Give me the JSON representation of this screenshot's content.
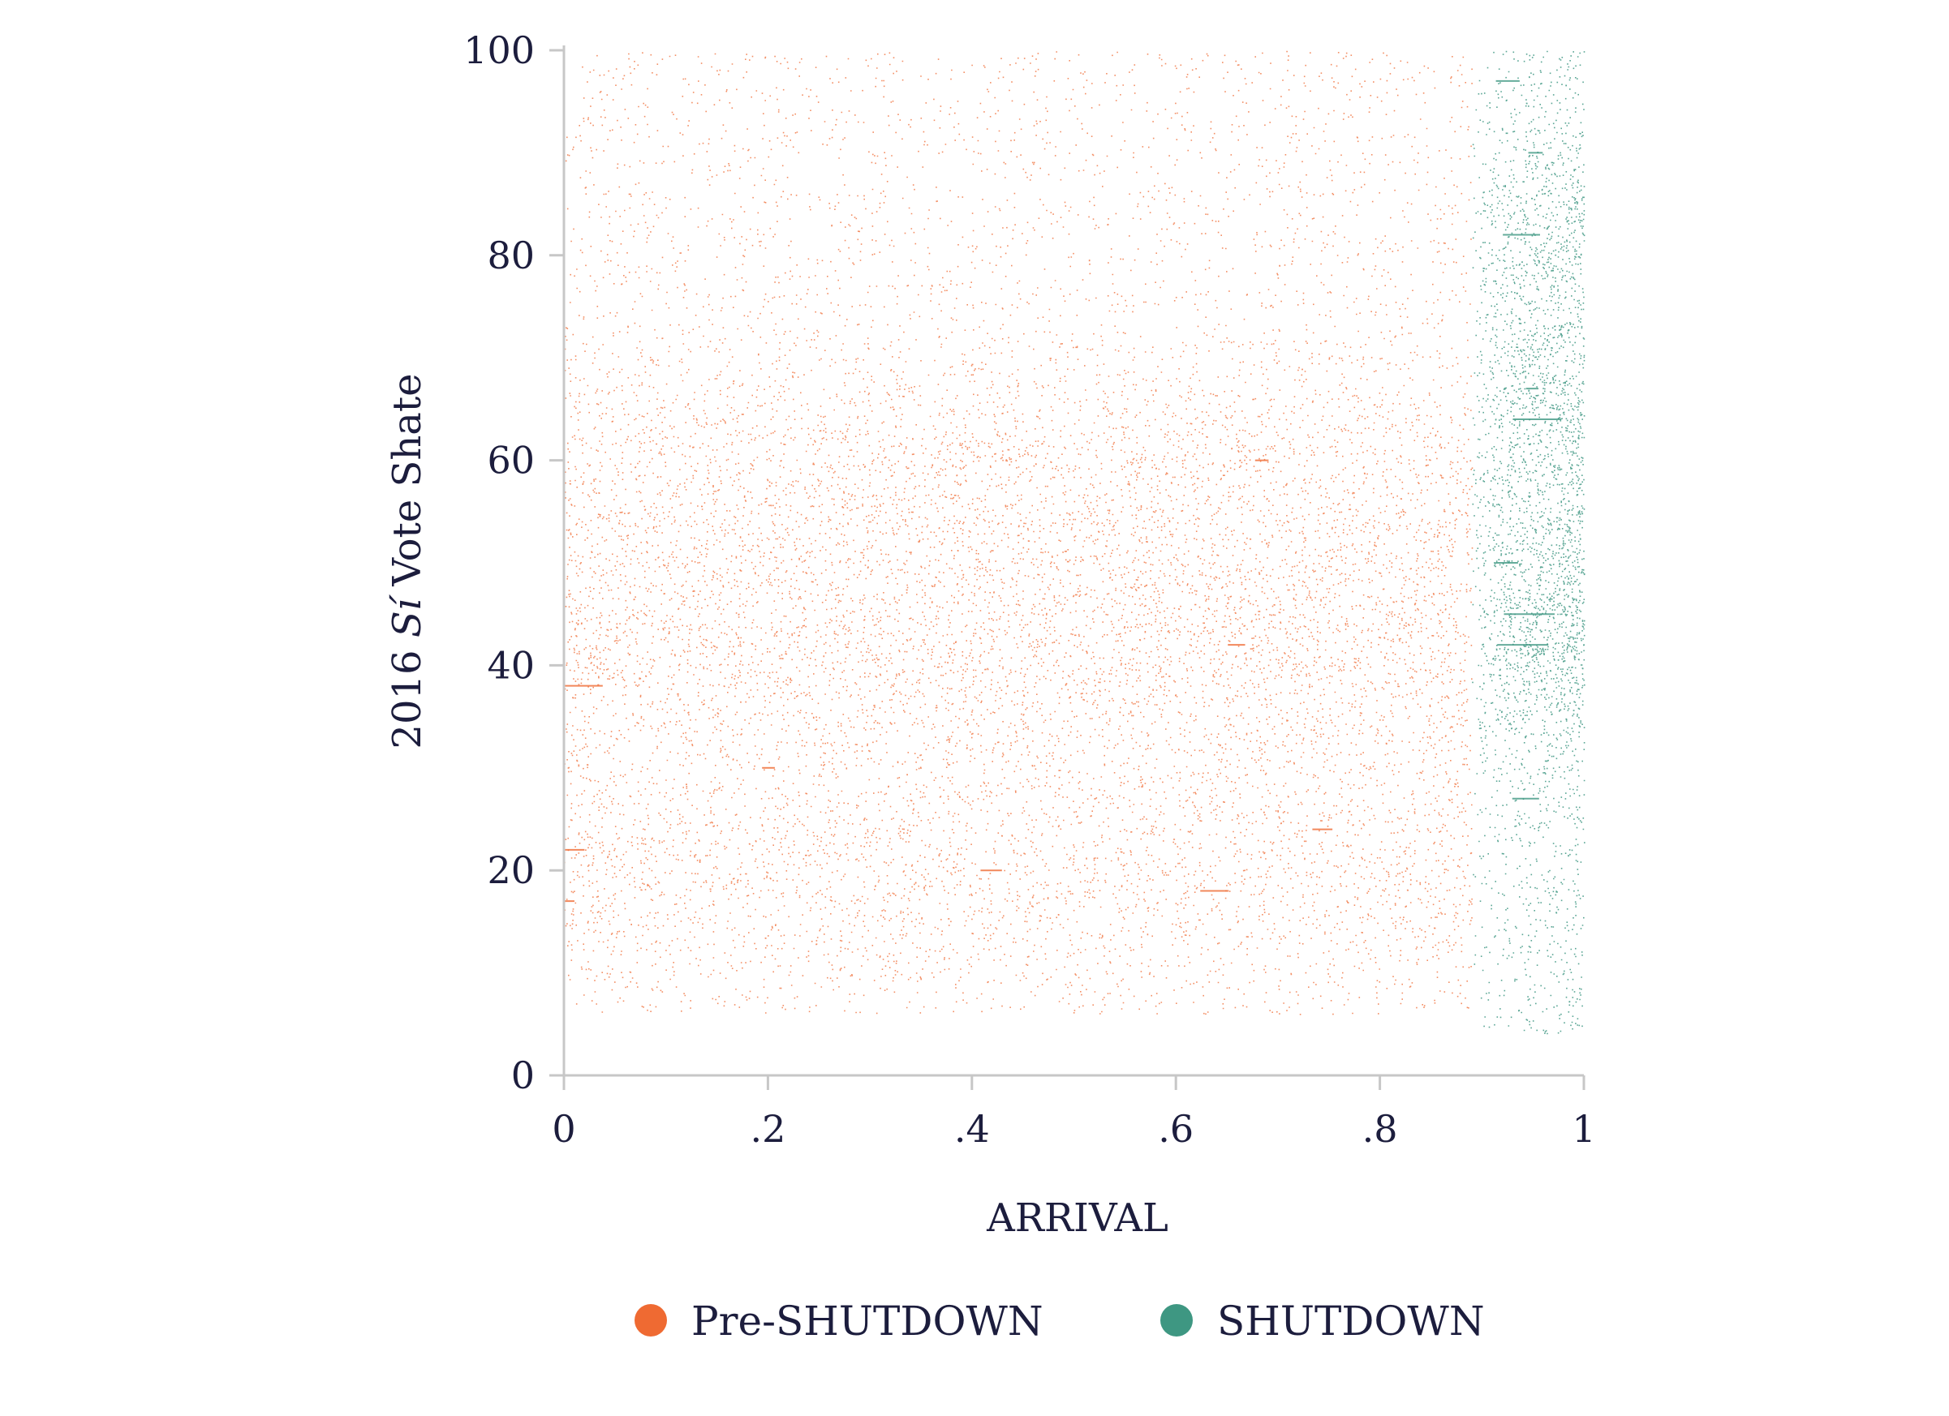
{
  "chart_data": {
    "type": "scatter",
    "title": "",
    "xlabel": "ARRIVAL",
    "ylabel_prefix": "2016 ",
    "ylabel_italic": "Sí",
    "ylabel_suffix": " Vote Shate",
    "xlim": [
      0,
      1
    ],
    "ylim": [
      0,
      100
    ],
    "x_ticks": [
      0,
      0.2,
      0.4,
      0.6,
      0.8,
      1
    ],
    "x_tick_labels": [
      "0",
      ".2",
      ".4",
      ".6",
      ".8",
      "1"
    ],
    "y_ticks": [
      0,
      20,
      40,
      60,
      80,
      100
    ],
    "y_tick_labels": [
      "0",
      "20",
      "40",
      "60",
      "80",
      "100"
    ],
    "grid": false,
    "legend_position": "bottom",
    "series": [
      {
        "name": "Pre-SHUTDOWN",
        "color": "#ef6a32",
        "x_range": [
          0,
          0.89
        ],
        "y_range": [
          6,
          100
        ],
        "density_peaks_y": [
          20,
          38,
          48,
          60
        ],
        "horizontal_streaks_y": [
          17,
          18,
          20,
          22,
          24,
          30,
          38,
          42,
          60
        ]
      },
      {
        "name": "SHUTDOWN",
        "color": "#3e9782",
        "x_range": [
          0.89,
          1
        ],
        "y_range": [
          4,
          100
        ],
        "density_peaks_y": [
          40,
          50,
          65,
          82
        ],
        "horizontal_streaks_y": [
          27,
          42,
          45,
          50,
          64,
          67,
          82,
          90,
          97
        ]
      }
    ]
  }
}
